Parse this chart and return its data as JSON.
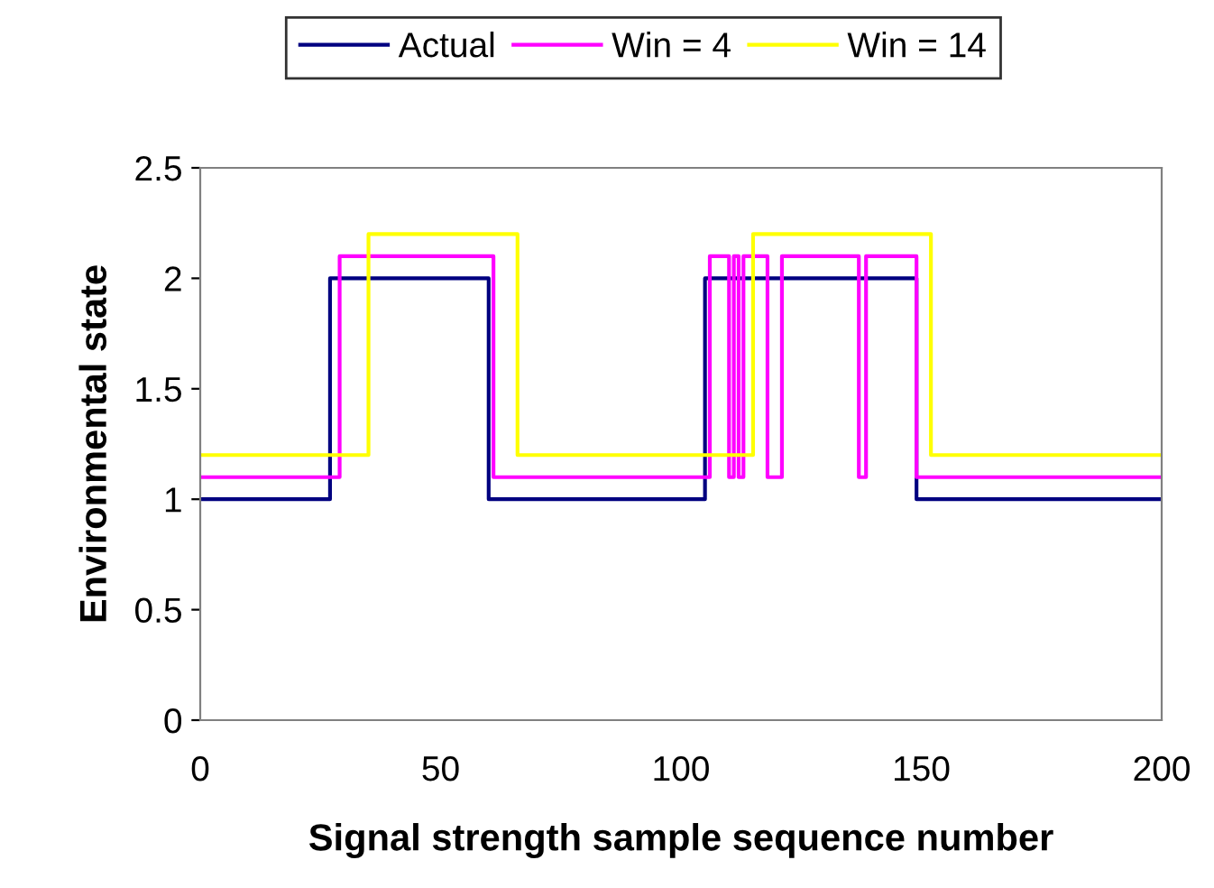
{
  "chart_data": {
    "type": "step",
    "xlabel": "Signal strength sample sequence number",
    "ylabel": "Environmental state",
    "xlim": [
      0,
      200
    ],
    "xticks": [
      0,
      50,
      100,
      150,
      200
    ],
    "ylim": [
      0,
      2.5
    ],
    "yticks": [
      0,
      0.5,
      1,
      1.5,
      2,
      2.5
    ],
    "grid": false,
    "legend": "top",
    "series": [
      {
        "name": "Actual",
        "color": "#000080",
        "x": [
          0,
          27,
          60,
          105,
          149,
          200
        ],
        "values": [
          1,
          2,
          1,
          2,
          1,
          1
        ]
      },
      {
        "name": "Win = 4",
        "color": "#ff00ff",
        "x": [
          0,
          29,
          61,
          106,
          110,
          111,
          112,
          113,
          114,
          118,
          121,
          137,
          138.5,
          149,
          200
        ],
        "values": [
          1.1,
          2.1,
          1.1,
          2.1,
          1.1,
          2.1,
          1.1,
          2.1,
          2.1,
          1.1,
          2.1,
          1.1,
          2.1,
          1.1,
          1.1
        ]
      },
      {
        "name": "Win = 14",
        "color": "#ffff00",
        "x": [
          0,
          35,
          66,
          115,
          152,
          200
        ],
        "values": [
          1.2,
          2.2,
          1.2,
          2.2,
          1.2,
          1.2
        ]
      }
    ]
  }
}
